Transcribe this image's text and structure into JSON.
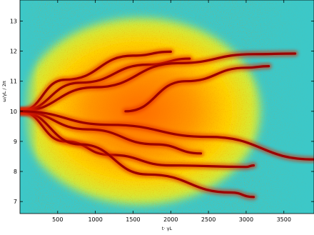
{
  "chart_data": {
    "type": "heatmap",
    "title": "",
    "xlabel": "t· γL",
    "ylabel": "ω/γL / 2π",
    "xlim": [
      0,
      3900
    ],
    "ylim": [
      6.6,
      13.7
    ],
    "x_ticks": [
      500,
      1000,
      1500,
      2000,
      2500,
      3000,
      3500
    ],
    "y_ticks": [
      7,
      8,
      9,
      10,
      11,
      12,
      13
    ],
    "grid": false,
    "colormap": "jet",
    "colormap_stops": [
      "#38d0c0",
      "#9ef07a",
      "#fff200",
      "#ffb400",
      "#ff6a00",
      "#e02000",
      "#9a0000"
    ],
    "background": "#3cc8c8",
    "series": [
      {
        "values": [
          [
            0,
            10
          ],
          [
            600,
            11.05
          ],
          [
            1500,
            11.85
          ],
          [
            2000,
            11.98
          ]
        ]
      },
      {
        "values": [
          [
            0,
            10
          ],
          [
            800,
            10.95
          ],
          [
            1700,
            11.55
          ],
          [
            2250,
            11.75
          ]
        ]
      },
      {
        "values": [
          [
            0,
            10
          ],
          [
            1000,
            10.8
          ],
          [
            2100,
            11.6
          ],
          [
            3100,
            11.9
          ],
          [
            3650,
            11.92
          ]
        ]
      },
      {
        "values": [
          [
            1400,
            10
          ],
          [
            2200,
            11
          ],
          [
            3000,
            11.45
          ],
          [
            3300,
            11.5
          ]
        ]
      },
      {
        "values": [
          [
            0,
            10
          ],
          [
            600,
            9.0
          ],
          [
            1200,
            8.55
          ],
          [
            2000,
            8.2
          ],
          [
            3000,
            8.15
          ],
          [
            3100,
            8.2
          ]
        ]
      },
      {
        "values": [
          [
            0,
            10
          ],
          [
            800,
            8.9
          ],
          [
            1700,
            7.9
          ],
          [
            2800,
            7.3
          ],
          [
            3100,
            7.15
          ]
        ]
      },
      {
        "values": [
          [
            0,
            10
          ],
          [
            900,
            9.4
          ],
          [
            1800,
            8.9
          ],
          [
            2400,
            8.6
          ]
        ]
      },
      {
        "values": [
          [
            0,
            10
          ],
          [
            1200,
            9.55
          ],
          [
            2500,
            9.15
          ],
          [
            3900,
            8.4
          ]
        ]
      }
    ]
  }
}
